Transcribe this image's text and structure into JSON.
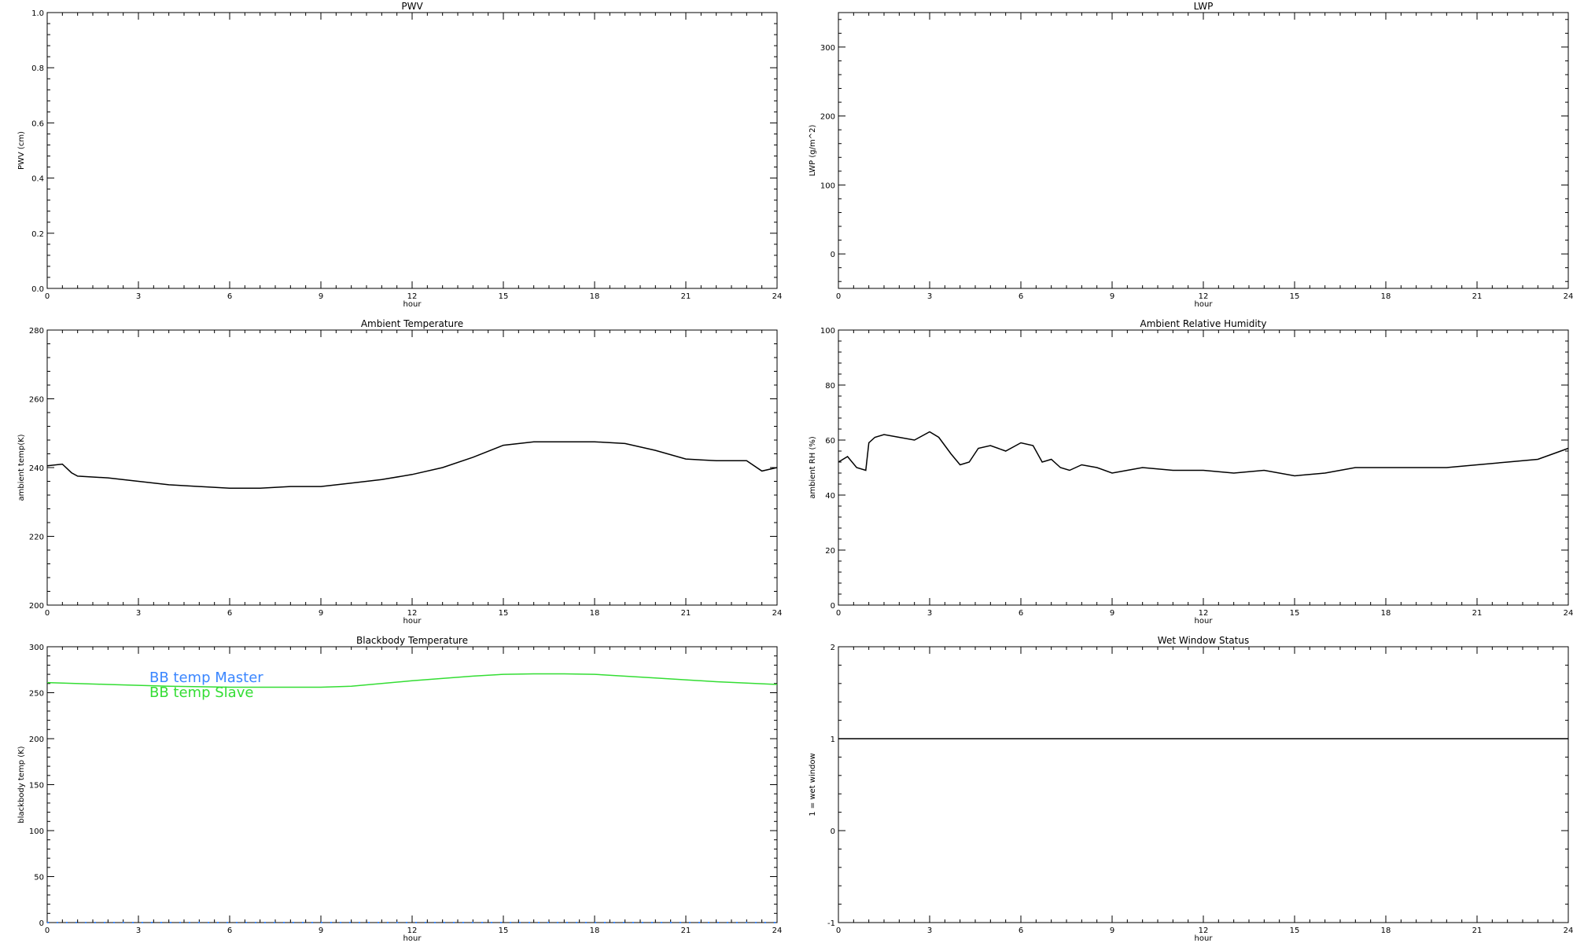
{
  "chart_data": [
    {
      "id": "pwv",
      "type": "line",
      "title": "PWV",
      "xlabel": "hour",
      "ylabel": "PWV (cm)",
      "xlim": [
        0,
        24
      ],
      "ylim": [
        0.0,
        1.0
      ],
      "xticks": [
        0,
        3,
        6,
        9,
        12,
        15,
        18,
        21,
        24
      ],
      "yticks": [
        "0.0",
        "0.2",
        "0.4",
        "0.6",
        "0.8",
        "1.0"
      ],
      "yticks_values": [
        0,
        0.2,
        0.4,
        0.6,
        0.8,
        1.0
      ],
      "series": []
    },
    {
      "id": "lwp",
      "type": "line",
      "title": "LWP",
      "xlabel": "hour",
      "ylabel": "LWP (g/m^2)",
      "xlim": [
        0,
        24
      ],
      "ylim": [
        -50,
        350
      ],
      "xticks": [
        0,
        3,
        6,
        9,
        12,
        15,
        18,
        21,
        24
      ],
      "yticks": [
        "0",
        "100",
        "200",
        "300"
      ],
      "yticks_values": [
        0,
        100,
        200,
        300
      ],
      "series": []
    },
    {
      "id": "temp",
      "type": "line",
      "title": "Ambient Temperature",
      "xlabel": "hour",
      "ylabel": "ambient temp(K)",
      "xlim": [
        0,
        24
      ],
      "ylim": [
        200,
        280
      ],
      "xticks": [
        0,
        3,
        6,
        9,
        12,
        15,
        18,
        21,
        24
      ],
      "yticks": [
        "200",
        "220",
        "240",
        "260",
        "280"
      ],
      "yticks_values": [
        200,
        220,
        240,
        260,
        280
      ],
      "series": [
        {
          "color": "#000000",
          "x": [
            0,
            0.5,
            0.8,
            1,
            2,
            3,
            4,
            5,
            6,
            7,
            8,
            9,
            10,
            11,
            12,
            13,
            14,
            15,
            16,
            17,
            18,
            19,
            20,
            21,
            22,
            23,
            23.5,
            24
          ],
          "y": [
            240.5,
            241,
            238.5,
            237.5,
            237,
            236,
            235,
            234.5,
            234,
            234,
            234.5,
            234.5,
            235.5,
            236.5,
            238,
            240,
            243,
            246.5,
            247.5,
            247.5,
            247.5,
            247,
            245,
            242.5,
            242,
            242,
            239,
            240
          ]
        }
      ]
    },
    {
      "id": "rh",
      "type": "line",
      "title": "Ambient Relative Humidity",
      "xlabel": "hour",
      "ylabel": "ambient RH (%)",
      "xlim": [
        0,
        24
      ],
      "ylim": [
        0,
        100
      ],
      "xticks": [
        0,
        3,
        6,
        9,
        12,
        15,
        18,
        21,
        24
      ],
      "yticks": [
        "0",
        "20",
        "40",
        "60",
        "80",
        "100"
      ],
      "yticks_values": [
        0,
        20,
        40,
        60,
        80,
        100
      ],
      "series": [
        {
          "color": "#000000",
          "x": [
            0,
            0.3,
            0.6,
            0.9,
            1.0,
            1.2,
            1.5,
            2.0,
            2.5,
            3.0,
            3.3,
            3.7,
            4.0,
            4.3,
            4.6,
            5.0,
            5.5,
            6.0,
            6.4,
            6.7,
            7.0,
            7.3,
            7.6,
            8.0,
            8.5,
            9.0,
            9.5,
            10.0,
            11.0,
            12.0,
            13.0,
            14.0,
            15.0,
            16.0,
            17.0,
            18.0,
            19.0,
            20.0,
            21.0,
            22.0,
            23.0,
            23.5,
            24.0
          ],
          "y": [
            52,
            54,
            50,
            49,
            59,
            61,
            62,
            61,
            60,
            63,
            61,
            55,
            51,
            52,
            57,
            58,
            56,
            59,
            58,
            52,
            53,
            50,
            49,
            51,
            50,
            48,
            49,
            50,
            49,
            49,
            48,
            49,
            47,
            48,
            50,
            50,
            50,
            50,
            51,
            52,
            53,
            55,
            57
          ]
        }
      ]
    },
    {
      "id": "bb",
      "type": "line",
      "title": "Blackbody Temperature",
      "xlabel": "hour",
      "ylabel": "blackbody temp (K)",
      "xlim": [
        0,
        24
      ],
      "ylim": [
        0,
        300
      ],
      "xticks": [
        0,
        3,
        6,
        9,
        12,
        15,
        18,
        21,
        24
      ],
      "yticks": [
        "0",
        "50",
        "100",
        "150",
        "200",
        "250",
        "300"
      ],
      "yticks_values": [
        0,
        50,
        100,
        150,
        200,
        250,
        300
      ],
      "legend_location": "upper-left",
      "series": [
        {
          "name": "BB temp Master",
          "color": "#3a86ff",
          "dashed": true,
          "x": [
            0,
            24
          ],
          "y": [
            0,
            0
          ]
        },
        {
          "name": "BB temp Slave",
          "color": "#33dd33",
          "x": [
            0,
            2,
            4,
            6,
            8,
            9,
            10,
            12,
            14,
            15,
            16,
            17,
            18,
            20,
            22,
            24
          ],
          "y": [
            261,
            259,
            257,
            256,
            256,
            256,
            257,
            263,
            268,
            270,
            270.5,
            270.5,
            270,
            266,
            262,
            259
          ]
        }
      ]
    },
    {
      "id": "wet",
      "type": "line",
      "title": "Wet Window Status",
      "xlabel": "hour",
      "ylabel": "1 = wet window",
      "xlim": [
        0,
        24
      ],
      "ylim": [
        -1,
        2
      ],
      "xticks": [
        0,
        3,
        6,
        9,
        12,
        15,
        18,
        21,
        24
      ],
      "yticks": [
        "-1",
        "0",
        "1",
        "2"
      ],
      "yticks_values": [
        -1,
        0,
        1,
        2
      ],
      "series": [
        {
          "color": "#000000",
          "x": [
            0,
            24
          ],
          "y": [
            1,
            1
          ]
        }
      ]
    }
  ]
}
